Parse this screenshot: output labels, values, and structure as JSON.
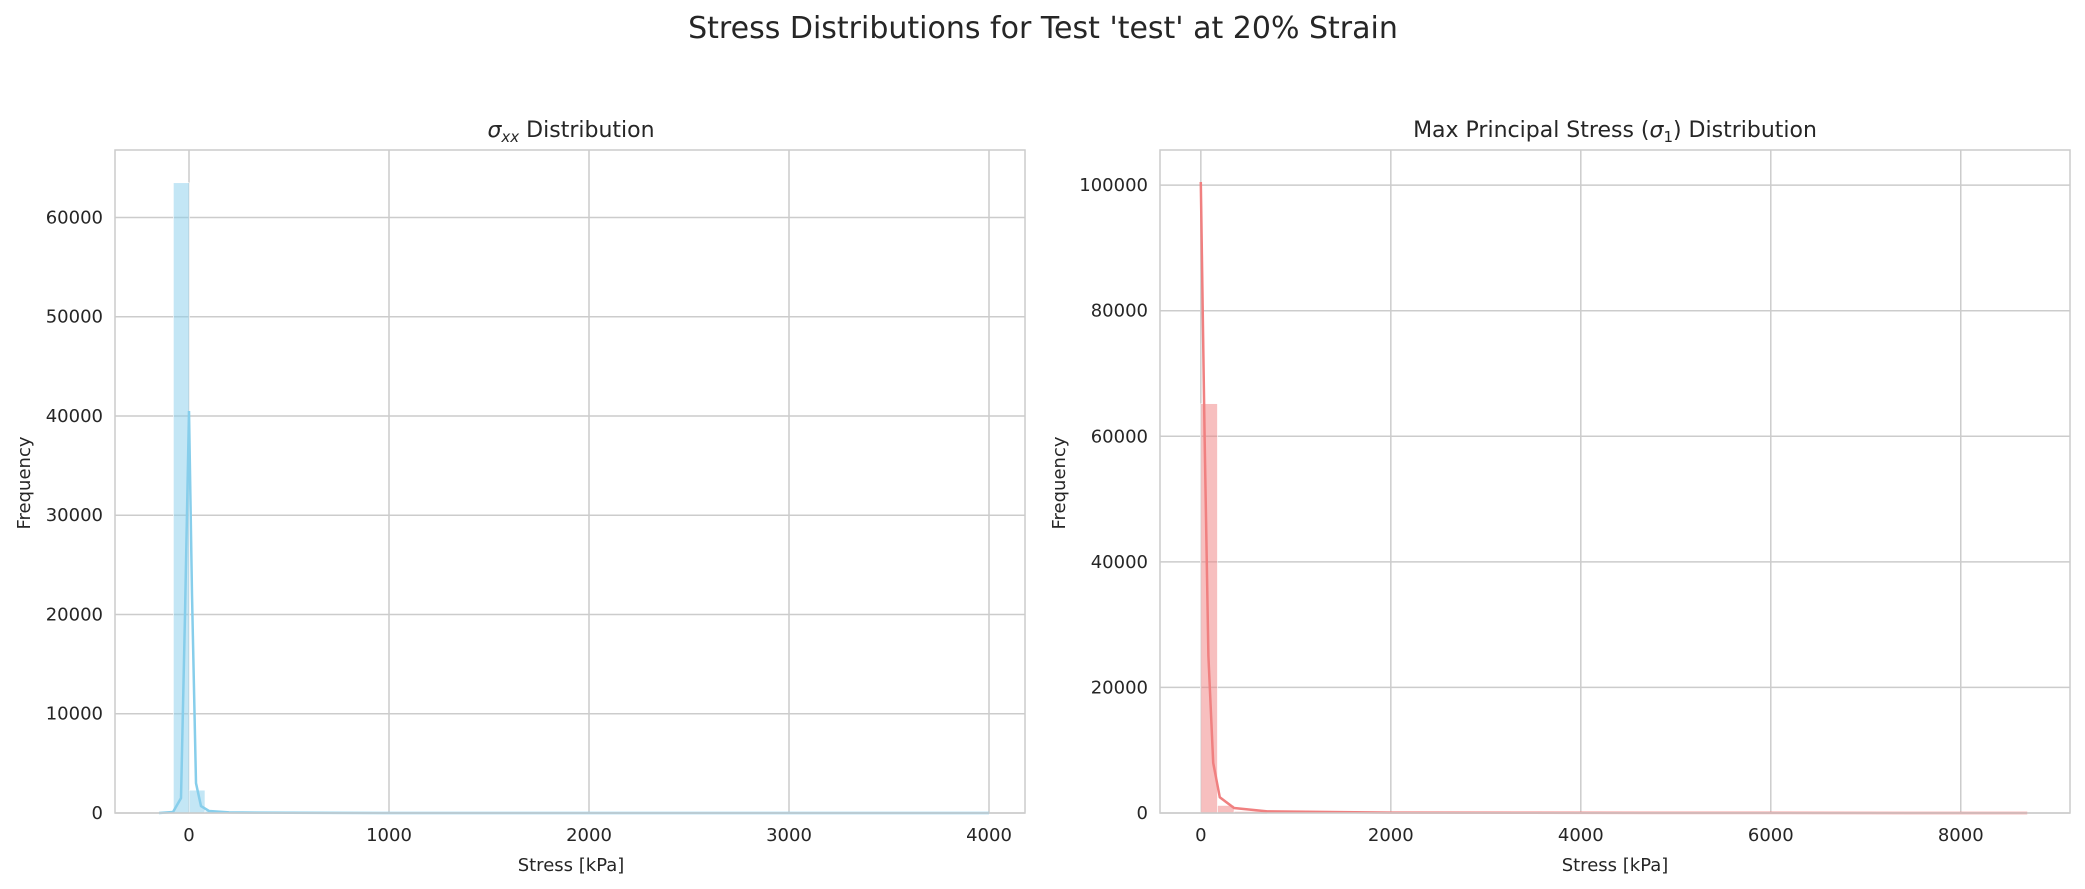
{
  "figure": {
    "title": "Stress Distributions for Test 'test' at 20% Strain"
  },
  "chart_data": [
    {
      "type": "histogram",
      "title": "σxx Distribution",
      "title_parts": {
        "sigma": "σ",
        "sub": "xx",
        "rest": " Distribution"
      },
      "xlabel": "Stress [kPa]",
      "ylabel": "Frequency",
      "xlim": [
        -370,
        4180
      ],
      "ylim": [
        0,
        66800
      ],
      "xticks": [
        0,
        1000,
        2000,
        3000,
        4000
      ],
      "yticks": [
        0,
        10000,
        20000,
        30000,
        40000,
        50000,
        60000
      ],
      "bars": [
        {
          "x0": -78,
          "x1": 1,
          "value": 63500
        },
        {
          "x0": 1,
          "x1": 80,
          "value": 2300
        },
        {
          "x0": 80,
          "x1": 159,
          "value": 200
        },
        {
          "x0": 159,
          "x1": 400,
          "value": 80
        },
        {
          "x0": 400,
          "x1": 3950,
          "value": 40
        }
      ],
      "kde": [
        [
          -150,
          0
        ],
        [
          -80,
          100
        ],
        [
          -40,
          1500
        ],
        [
          -20,
          20000
        ],
        [
          0,
          40500
        ],
        [
          15,
          22000
        ],
        [
          35,
          3000
        ],
        [
          60,
          700
        ],
        [
          100,
          200
        ],
        [
          200,
          60
        ],
        [
          500,
          20
        ],
        [
          1000,
          5
        ],
        [
          4000,
          0
        ]
      ],
      "color": "#87ceeb"
    },
    {
      "type": "histogram",
      "title": "Max Principal Stress (σ1) Distribution",
      "title_parts": {
        "pre": "Max Principal Stress (",
        "sigma": "σ",
        "sub": "1",
        "rest": ") Distribution"
      },
      "xlabel": "Stress [kPa]",
      "ylabel": "Frequency",
      "xlim": [
        -430,
        9150
      ],
      "ylim": [
        0,
        105600
      ],
      "xticks": [
        0,
        2000,
        4000,
        6000,
        8000
      ],
      "yticks": [
        0,
        20000,
        40000,
        60000,
        80000,
        100000
      ],
      "bars": [
        {
          "x0": 0,
          "x1": 175,
          "value": 65200
        },
        {
          "x0": 175,
          "x1": 350,
          "value": 1200
        },
        {
          "x0": 350,
          "x1": 700,
          "value": 250
        },
        {
          "x0": 700,
          "x1": 8700,
          "value": 40
        }
      ],
      "kde": [
        [
          0,
          100500
        ],
        [
          40,
          60000
        ],
        [
          80,
          25000
        ],
        [
          130,
          8000
        ],
        [
          200,
          2500
        ],
        [
          350,
          800
        ],
        [
          700,
          250
        ],
        [
          2000,
          60
        ],
        [
          5000,
          20
        ],
        [
          8700,
          0
        ]
      ],
      "color": "#f08080"
    }
  ]
}
